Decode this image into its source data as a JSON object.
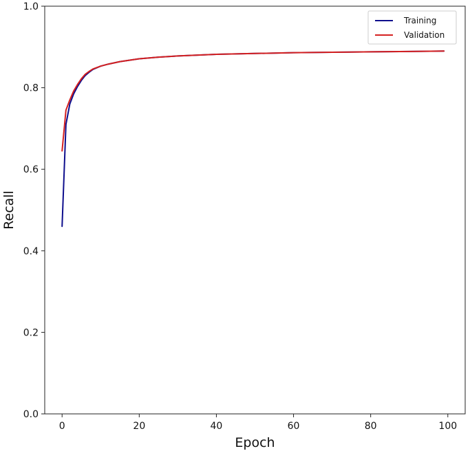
{
  "chart_data": {
    "type": "line",
    "title": "",
    "xlabel": "Epoch",
    "ylabel": "Recall",
    "xlim": [
      -4.5,
      104.5
    ],
    "ylim": [
      0.0,
      1.0
    ],
    "xticks": [
      0,
      20,
      40,
      60,
      80,
      100
    ],
    "yticks": [
      0.0,
      0.2,
      0.4,
      0.6,
      0.8,
      1.0
    ],
    "xtick_labels": [
      "0",
      "20",
      "40",
      "60",
      "80",
      "100"
    ],
    "ytick_labels": [
      "0.0",
      "0.2",
      "0.4",
      "0.6",
      "0.8",
      "1.0"
    ],
    "grid": false,
    "legend_position": "top-right",
    "series": [
      {
        "name": "Training",
        "color": "#0d0d8c",
        "x": [
          0,
          1,
          2,
          3,
          4,
          5,
          6,
          7,
          8,
          10,
          12,
          15,
          20,
          25,
          30,
          40,
          50,
          60,
          70,
          80,
          90,
          99
        ],
        "values": [
          0.46,
          0.71,
          0.76,
          0.785,
          0.803,
          0.818,
          0.83,
          0.838,
          0.845,
          0.853,
          0.858,
          0.864,
          0.871,
          0.875,
          0.878,
          0.882,
          0.884,
          0.886,
          0.887,
          0.888,
          0.889,
          0.89
        ]
      },
      {
        "name": "Validation",
        "color": "#d42020",
        "x": [
          0,
          1,
          2,
          3,
          4,
          5,
          6,
          7,
          8,
          10,
          12,
          15,
          20,
          25,
          30,
          40,
          50,
          60,
          70,
          80,
          90,
          99
        ],
        "values": [
          0.645,
          0.745,
          0.77,
          0.792,
          0.808,
          0.822,
          0.833,
          0.84,
          0.846,
          0.853,
          0.858,
          0.864,
          0.871,
          0.875,
          0.878,
          0.882,
          0.884,
          0.886,
          0.887,
          0.888,
          0.889,
          0.89
        ]
      }
    ]
  }
}
